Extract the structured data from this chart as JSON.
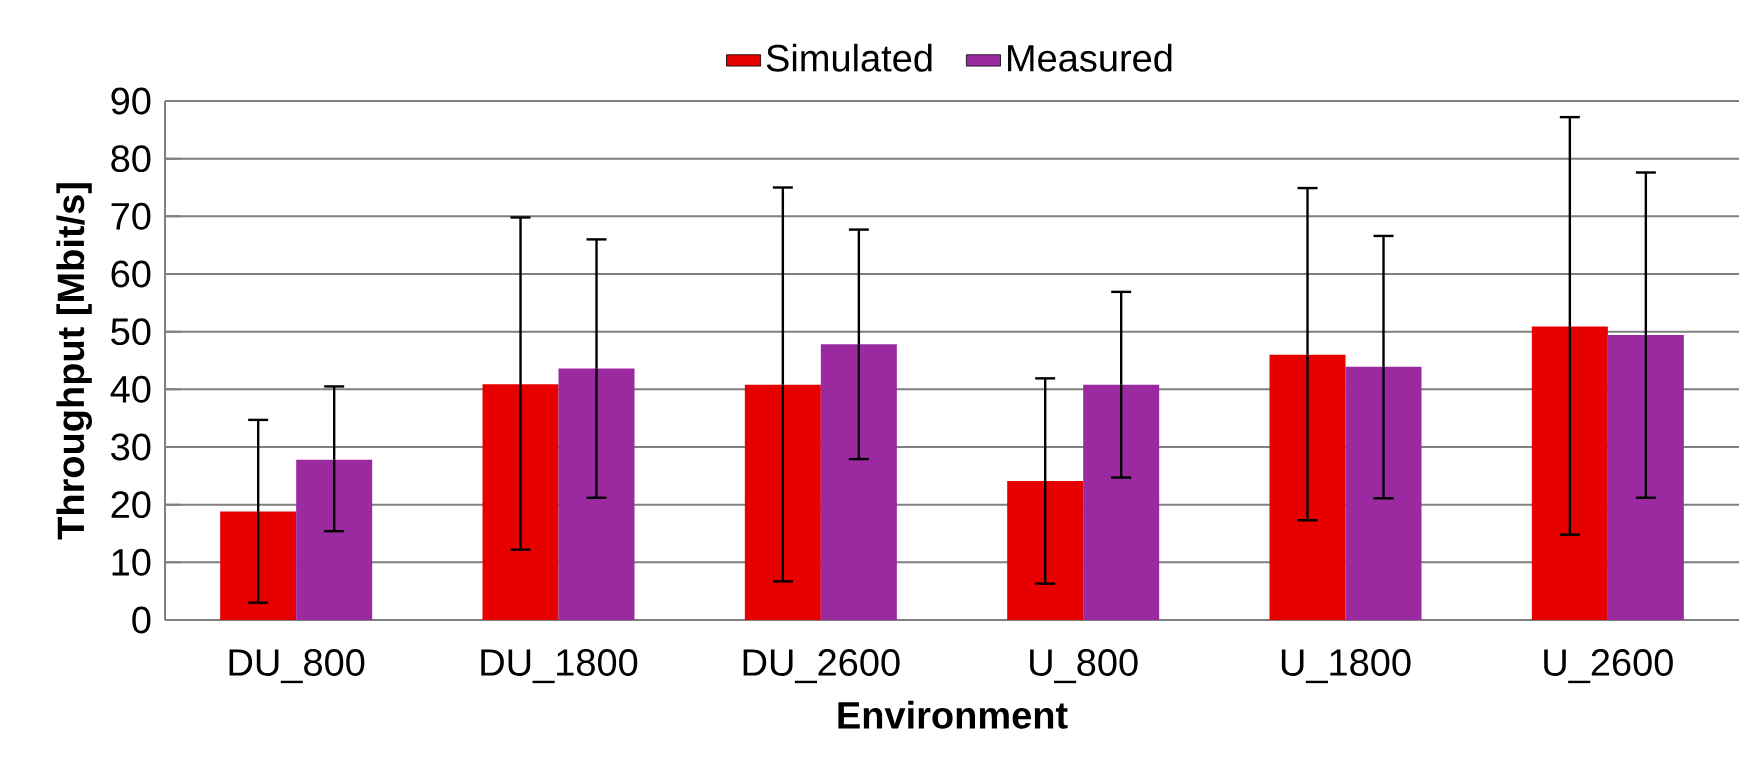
{
  "chart_data": {
    "type": "bar",
    "xlabel": "Environment",
    "ylabel": "Throughput [Mbit/s]",
    "categories": [
      "DU_800",
      "DU_1800",
      "DU_2600",
      "U_800",
      "U_1800",
      "U_2600"
    ],
    "series": [
      {
        "name": "Simulated",
        "color": "#e60000",
        "values": [
          18.8,
          40.9,
          40.8,
          24.1,
          46.0,
          50.9
        ],
        "errors": [
          [
            3.0,
            34.7
          ],
          [
            12.2,
            69.8
          ],
          [
            6.7,
            75.0
          ],
          [
            6.3,
            41.9
          ],
          [
            17.3,
            74.9
          ],
          [
            14.8,
            87.2
          ]
        ]
      },
      {
        "name": "Measured",
        "color": "#9b2aa0",
        "values": [
          27.8,
          43.6,
          47.8,
          40.8,
          43.9,
          49.4
        ],
        "errors": [
          [
            15.4,
            40.5
          ],
          [
            21.2,
            66.0
          ],
          [
            27.9,
            67.7
          ],
          [
            24.7,
            56.9
          ],
          [
            21.1,
            66.6
          ],
          [
            21.2,
            77.6
          ]
        ]
      }
    ],
    "ylim": [
      0,
      90
    ],
    "yticks": [
      0,
      10,
      20,
      30,
      40,
      50,
      60,
      70,
      80,
      90
    ],
    "grid": "y",
    "legend": "top"
  }
}
